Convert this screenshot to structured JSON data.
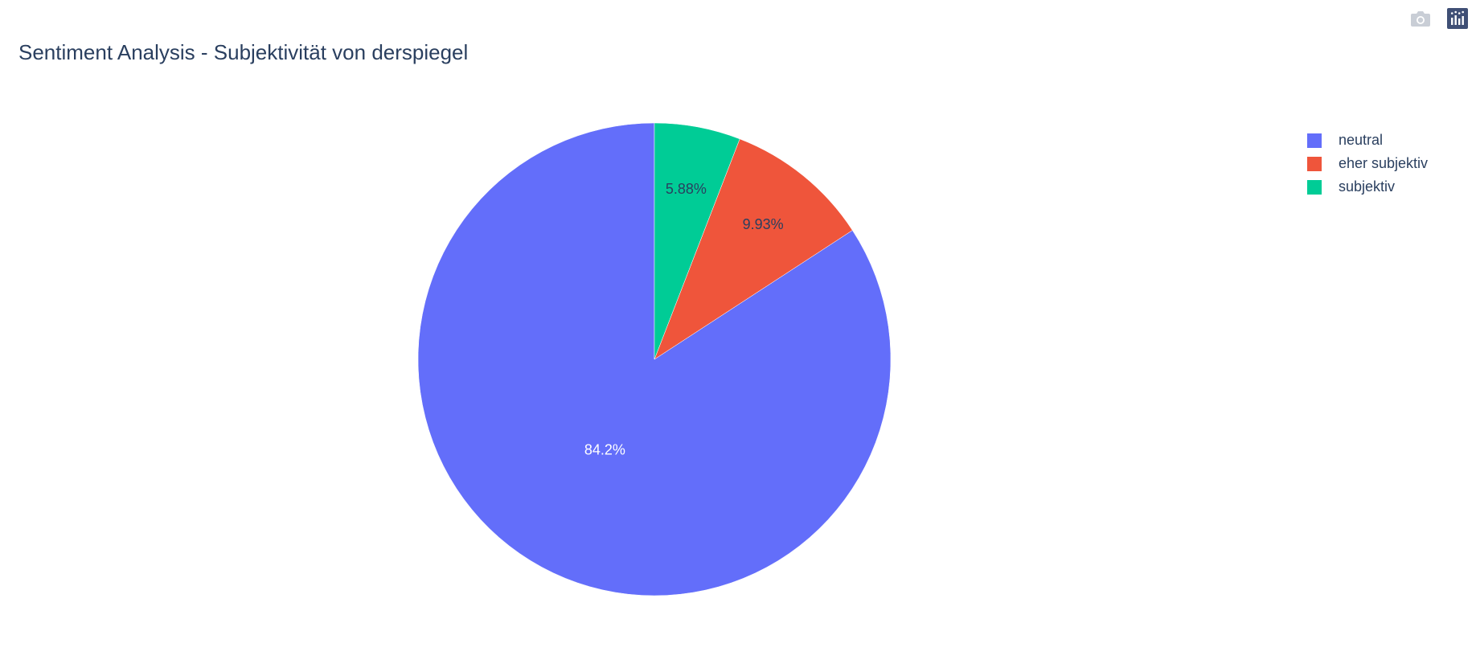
{
  "modebar": {
    "items": [
      {
        "name": "camera-icon",
        "color": "#c9ced6"
      },
      {
        "name": "plotly-logo-icon",
        "color": "#3f4f75"
      }
    ]
  },
  "chart_data": {
    "type": "pie",
    "title": "Sentiment Analysis - Subjektivität von derspiegel",
    "slices": [
      {
        "label": "neutral",
        "percent": 84.2,
        "text": "84.2%",
        "color": "#636efa",
        "text_color": "#ffffff"
      },
      {
        "label": "eher subjektiv",
        "percent": 9.93,
        "text": "9.93%",
        "color": "#ef553b",
        "text_color": "#2a3f5f"
      },
      {
        "label": "subjektiv",
        "percent": 5.88,
        "text": "5.88%",
        "color": "#00cc96",
        "text_color": "#2a3f5f"
      }
    ],
    "direction": "counterclockwise",
    "legend_position": "top-right"
  }
}
